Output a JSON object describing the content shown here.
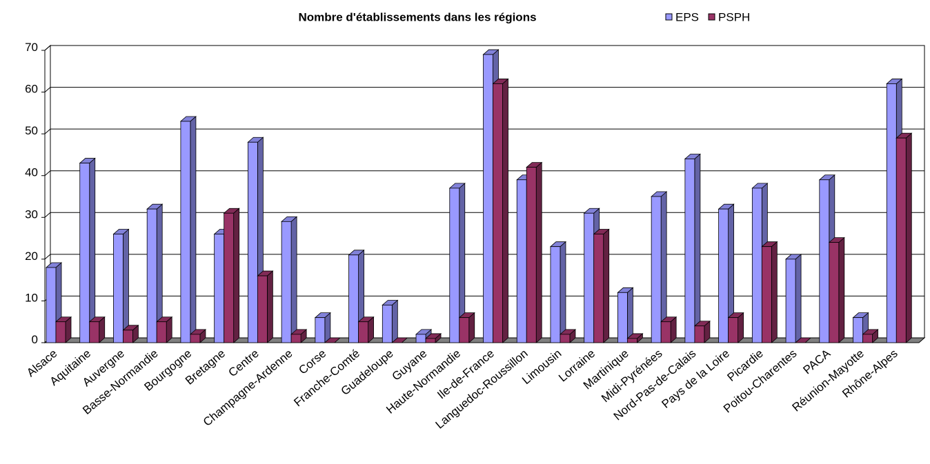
{
  "chart_data": {
    "type": "bar3d",
    "title": "Nombre d'établissements dans les régions",
    "categories": [
      "Alsace",
      "Aquitaine",
      "Auvergne",
      "Basse-Normandie",
      "Bourgogne",
      "Bretagne",
      "Centre",
      "Champagne-Ardenne",
      "Corse",
      "Franche-Comté",
      "Guadeloupe",
      "Guyane",
      "Haute-Normandie",
      "Ile-de-France",
      "Languedoc-Roussillon",
      "Limousin",
      "Lorraine",
      "Martinique",
      "Midi-Pyrénées",
      "Nord-Pas-de-Calais",
      "Pays de la Loire",
      "Picardie",
      "Poitou-Charentes",
      "PACA",
      "Réunion-Mayotte",
      "Rhône-Alpes"
    ],
    "series": [
      {
        "name": "EPS",
        "color": "#9999ff",
        "values": [
          18,
          43,
          26,
          32,
          53,
          26,
          48,
          29,
          6,
          21,
          9,
          2,
          37,
          69,
          39,
          23,
          31,
          12,
          35,
          44,
          32,
          37,
          20,
          39,
          6,
          62
        ]
      },
      {
        "name": "PSPH",
        "color": "#993366",
        "values": [
          5,
          5,
          3,
          5,
          2,
          31,
          16,
          2,
          0,
          5,
          0,
          1,
          6,
          62,
          42,
          2,
          26,
          1,
          5,
          4,
          6,
          23,
          0,
          24,
          2,
          49
        ]
      }
    ],
    "ylim": [
      0,
      70
    ],
    "yticks": [
      0,
      10,
      20,
      30,
      40,
      50,
      60,
      70
    ],
    "grid": true,
    "legend": "top-right"
  }
}
